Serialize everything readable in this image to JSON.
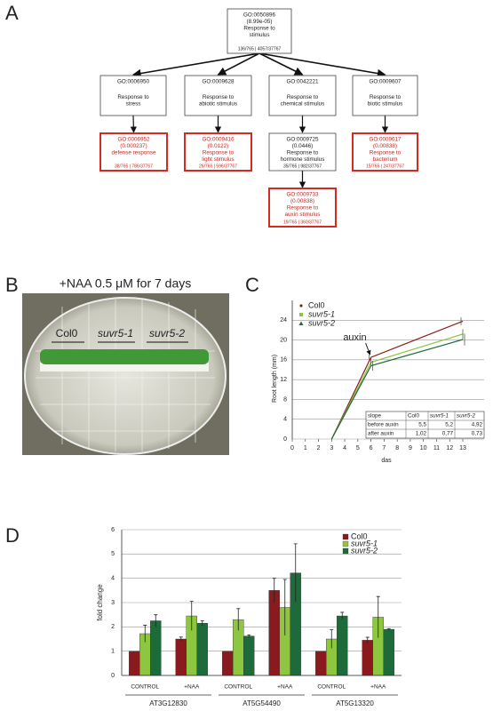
{
  "panels": [
    "A",
    "B",
    "C",
    "D"
  ],
  "diagram": {
    "nodes": [
      {
        "id": "GO:0050896",
        "p": "(8.99e-05)",
        "label": [
          "Response to",
          "stimulus"
        ],
        "counts": "136/765 | 4057/37767",
        "highlight": false
      },
      {
        "id": "GO:0006950",
        "label": [
          "Response to",
          "stress"
        ],
        "highlight": false
      },
      {
        "id": "GO:0009628",
        "label": [
          "Response to",
          "abiotic stimulus"
        ],
        "highlight": false
      },
      {
        "id": "GO:0042221",
        "label": [
          "Response to",
          "chemical stimulus"
        ],
        "highlight": false
      },
      {
        "id": "GO:0009607",
        "label": [
          "Response to",
          "biotic stimulus"
        ],
        "highlight": false
      },
      {
        "id": "GO:0006952",
        "p": "(0.000237)",
        "label": [
          "defense response"
        ],
        "counts": "38/765 | 786/37767",
        "highlight": true
      },
      {
        "id": "GO:0009416",
        "p": "(0.0122)",
        "label": [
          "Response to",
          "light stimulus"
        ],
        "counts": "26/765 | 596/37767",
        "highlight": true
      },
      {
        "id": "GO:0009725",
        "p": "(0.0446)",
        "label": [
          "Response to",
          "hormone stimulus"
        ],
        "counts": "35/765 | 982/37767",
        "highlight": false
      },
      {
        "id": "GO:0009617",
        "p": "(0.00838)",
        "label": [
          "Response to",
          "bacterium"
        ],
        "counts": "15/765 | 247/37767",
        "highlight": true
      },
      {
        "id": "GO:0009733",
        "p": "(0.00838)",
        "label": [
          "Response to",
          "auxin stimulus"
        ],
        "counts": "19/765 | 360/37767",
        "highlight": true
      }
    ]
  },
  "photo": {
    "title": "+NAA 0.5 μM for 7 days",
    "labels": [
      "Col0",
      "suvr5-1",
      "suvr5-2"
    ]
  },
  "chart_data": [
    {
      "type": "line",
      "x_label": "das",
      "y_label": "Root length (mm)",
      "x": [
        3,
        6,
        13
      ],
      "series": [
        {
          "name": "Col0",
          "color": "#8b1c1c",
          "values": [
            0,
            16.5,
            23.8
          ],
          "errors": [
            0,
            0.6,
            0.8
          ]
        },
        {
          "name": "suvr5-1",
          "color": "#8cc63e",
          "values": [
            0,
            15.5,
            21.2
          ],
          "errors": [
            0,
            0.8,
            1.0
          ]
        },
        {
          "name": "suvr5-2",
          "color": "#1e6b3b",
          "values": [
            0,
            14.8,
            20.1
          ],
          "errors": [
            0,
            1.0,
            1.2
          ]
        }
      ],
      "xlim": [
        0,
        13
      ],
      "xticks": [
        0,
        1,
        2,
        3,
        4,
        5,
        6,
        7,
        8,
        9,
        10,
        11,
        12,
        13
      ],
      "ylim": [
        0,
        28
      ],
      "yticks": [
        0,
        4,
        8,
        12,
        16,
        20,
        24
      ],
      "grid": true,
      "annotation": {
        "text": "auxin",
        "x": 6,
        "y": 16.5
      },
      "table": {
        "header": [
          "slope",
          "Col0",
          "suvr5-1",
          "suvr5-2"
        ],
        "rows": [
          [
            "before auxin",
            "5,5",
            "5,2",
            "4,92"
          ],
          [
            "after auxin",
            "1,02",
            "0,77",
            "0,73"
          ]
        ]
      }
    },
    {
      "type": "bar",
      "y_label": "fold change",
      "categories": [
        "CONTROL",
        "+NAA",
        "CONTROL",
        "+NAA",
        "CONTROL",
        "+NAA"
      ],
      "groups": [
        "AT3G12830",
        "AT5G54490",
        "AT5G13320"
      ],
      "series": [
        {
          "name": "Col0",
          "color": "#8b1a1f",
          "values": [
            1,
            1.5,
            1,
            3.5,
            1,
            1.45
          ],
          "errors": [
            0,
            0.08,
            0,
            0.5,
            0,
            0.12
          ]
        },
        {
          "name": "suvr5-1",
          "color": "#8dc63f",
          "values": [
            1.72,
            2.45,
            2.3,
            2.8,
            1.5,
            2.4
          ],
          "errors": [
            0.35,
            0.6,
            0.45,
            1.15,
            0.38,
            0.85
          ]
        },
        {
          "name": "suvr5-2",
          "color": "#1d6b3a",
          "values": [
            2.25,
            2.15,
            1.62,
            4.22,
            2.45,
            1.9
          ],
          "errors": [
            0.25,
            0.1,
            0.05,
            1.2,
            0.15,
            0.03
          ]
        }
      ],
      "ylim": [
        0,
        6
      ],
      "yticks": [
        0,
        1,
        2,
        3,
        4,
        5,
        6
      ],
      "grid": true
    }
  ]
}
